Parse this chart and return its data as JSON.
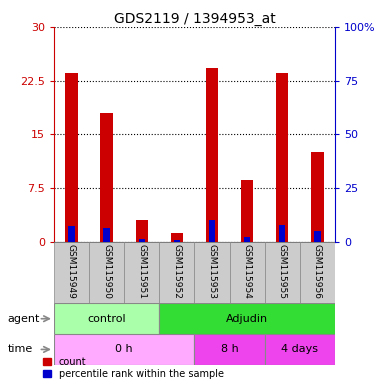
{
  "title": "GDS2119 / 1394953_at",
  "samples": [
    "GSM115949",
    "GSM115950",
    "GSM115951",
    "GSM115952",
    "GSM115953",
    "GSM115954",
    "GSM115955",
    "GSM115956"
  ],
  "count_values": [
    23.5,
    18.0,
    3.0,
    1.3,
    24.2,
    8.7,
    23.5,
    12.5
  ],
  "percentile_values": [
    7.5,
    6.3,
    1.5,
    0.7,
    10.3,
    2.5,
    8.0,
    5.3
  ],
  "left_yticks": [
    0,
    7.5,
    15,
    22.5,
    30
  ],
  "right_yticks": [
    0,
    25,
    50,
    75,
    100
  ],
  "right_yticklabels": [
    "0",
    "25",
    "50",
    "75",
    "100%"
  ],
  "left_yticklabels": [
    "0",
    "7.5",
    "15",
    "22.5",
    "30"
  ],
  "ylim": [
    0,
    30
  ],
  "right_ylim": [
    0,
    100
  ],
  "bar_color_red": "#cc0000",
  "bar_color_blue": "#0000cc",
  "bar_width": 0.35,
  "blue_bar_width": 0.18,
  "grid_color": "black",
  "agent_row": [
    {
      "label": "control",
      "start": 0,
      "end": 3,
      "color": "#aaffaa"
    },
    {
      "label": "Adjudin",
      "start": 3,
      "end": 8,
      "color": "#33dd33"
    }
  ],
  "time_row": [
    {
      "label": "0 h",
      "start": 0,
      "end": 4,
      "color": "#ffaaff"
    },
    {
      "label": "8 h",
      "start": 4,
      "end": 6,
      "color": "#ee44ee"
    },
    {
      "label": "4 days",
      "start": 6,
      "end": 8,
      "color": "#ee44ee"
    }
  ],
  "agent_label": "agent",
  "time_label": "time",
  "legend_count_label": "count",
  "legend_percentile_label": "percentile rank within the sample",
  "tick_color_left": "#cc0000",
  "tick_color_right": "#0000cc",
  "title_fontsize": 10,
  "axis_fontsize": 8,
  "sample_fontsize": 6.5,
  "row_label_fontsize": 8,
  "row_text_fontsize": 8,
  "legend_fontsize": 7
}
